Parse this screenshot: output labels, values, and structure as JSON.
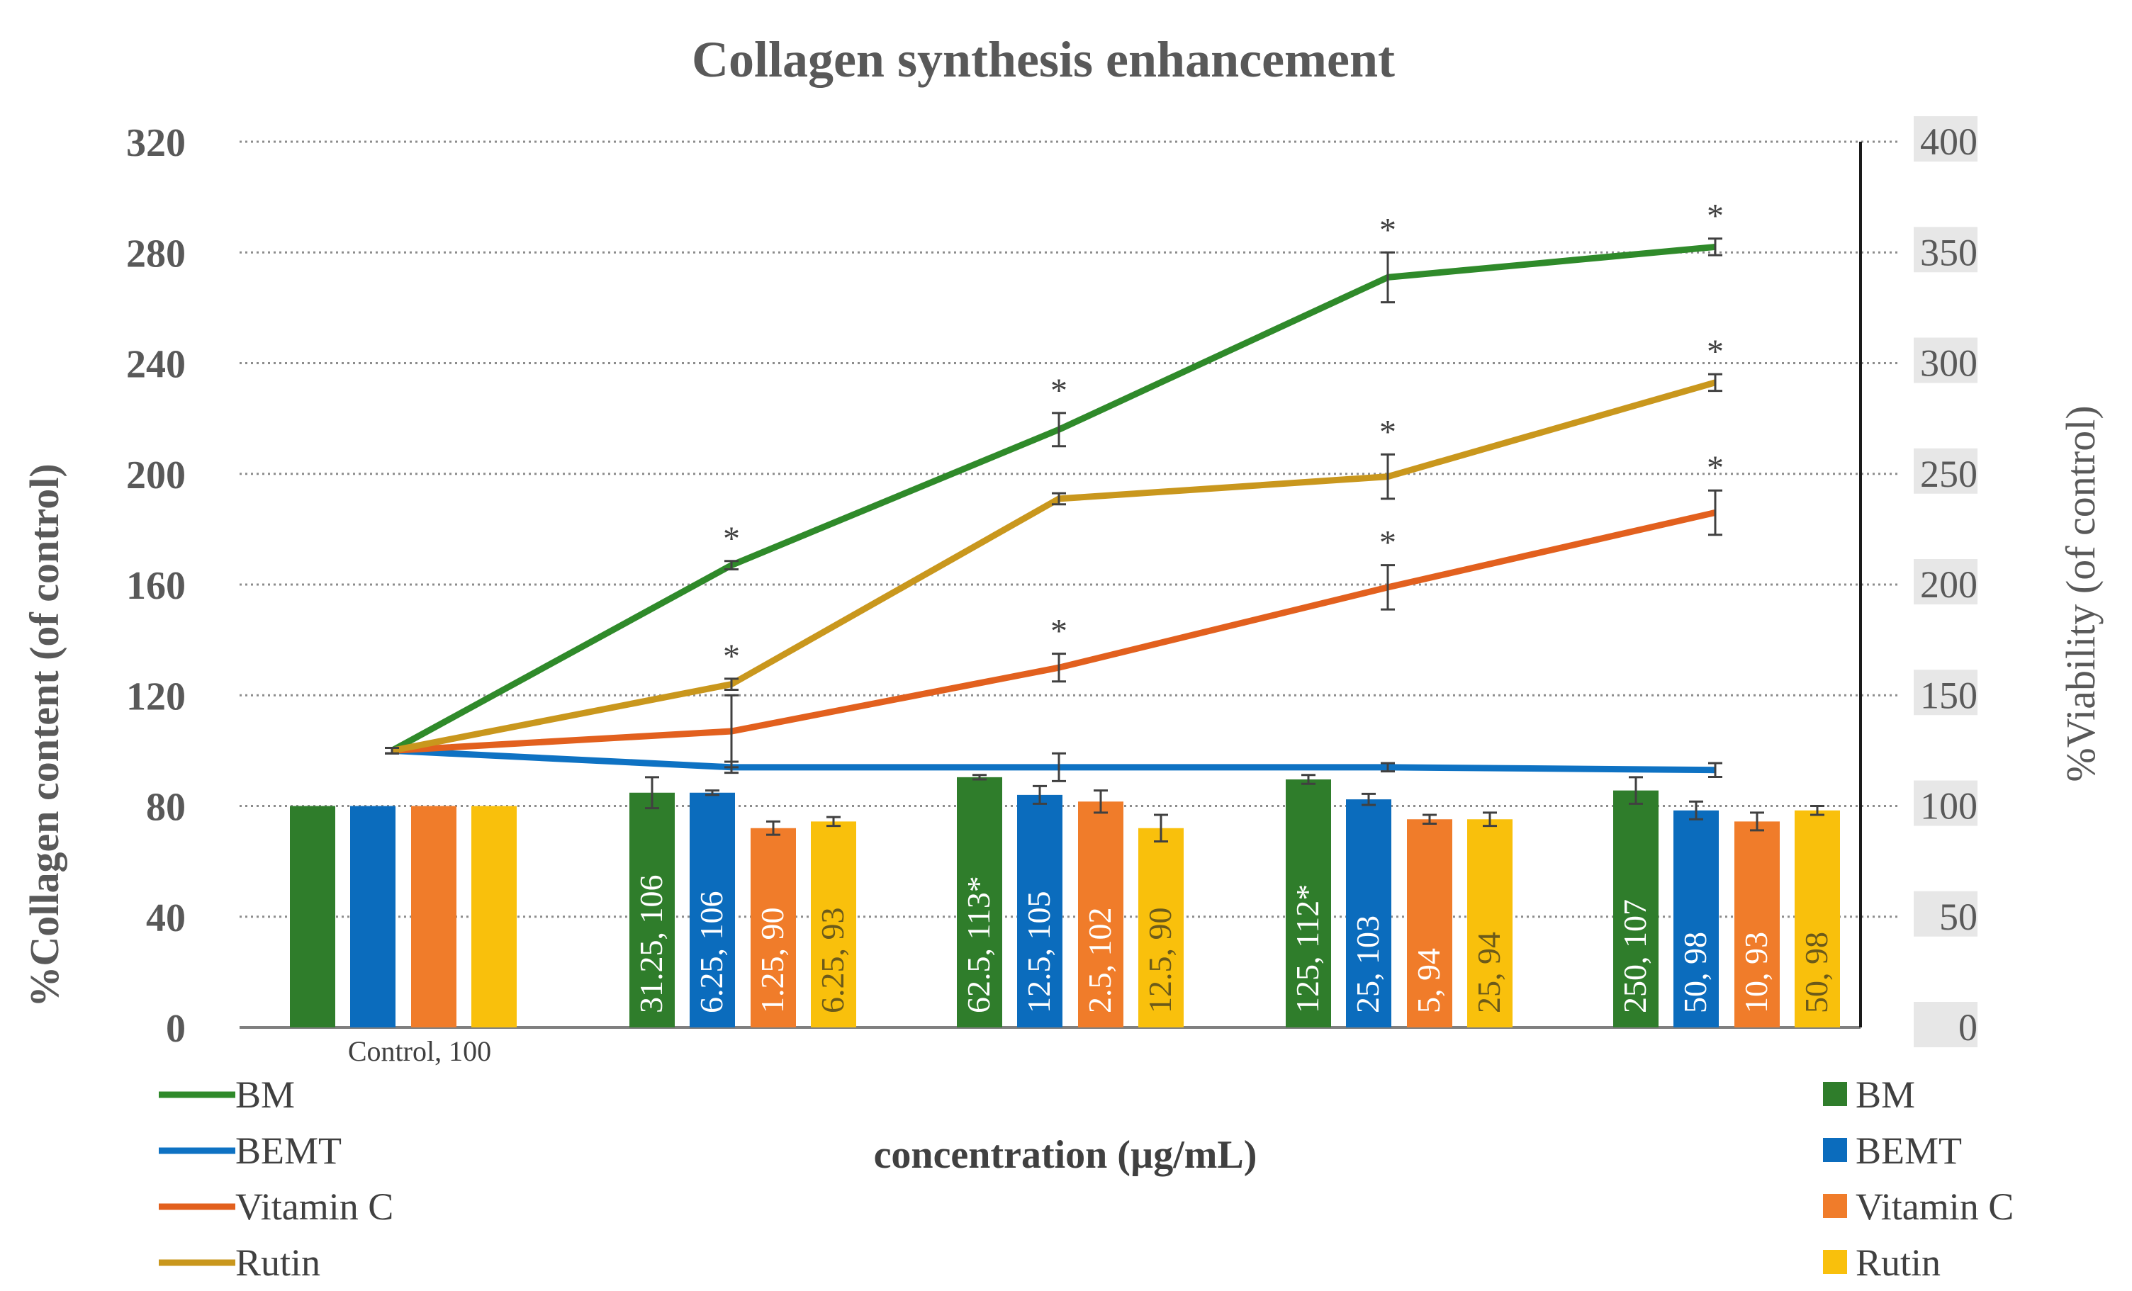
{
  "chart_data": {
    "type": "bar+line",
    "title": "Collagen synthesis enhancement",
    "xlabel": "concentration (µg/mL)",
    "ylabel_left": "%Collagen content (of control)",
    "ylabel_right": "%Viability (of control)",
    "ylim_left": [
      0,
      320
    ],
    "ylim_right": [
      0,
      400
    ],
    "yticks_left": [
      "0",
      "40",
      "80",
      "120",
      "160",
      "200",
      "240",
      "280",
      "320"
    ],
    "yticks_right": [
      "0",
      "50",
      "100",
      "150",
      "200",
      "250",
      "300",
      "350",
      "400"
    ],
    "grid": true,
    "groups": 5,
    "colors": {
      "BM": "#2f7d2b",
      "BEMT": "#0b6cbd",
      "VitaminC": "#f07c2a",
      "Rutin": "#f9c00c",
      "line_BM": "#2f8a2a",
      "line_BEMT": "#0e72c3",
      "line_VitaminC": "#e2601e",
      "line_Rutin": "#c9971d"
    },
    "line_series": [
      {
        "key": "BM",
        "values": [
          100,
          167,
          216,
          271,
          282
        ],
        "errors": [
          1,
          1.5,
          6,
          9,
          3
        ],
        "stars": [
          false,
          true,
          true,
          true,
          true
        ]
      },
      {
        "key": "BEMT",
        "values": [
          100,
          94,
          94,
          94,
          93
        ],
        "errors": [
          1,
          2,
          5,
          1.5,
          2.5
        ],
        "stars": [
          false,
          false,
          false,
          false,
          false
        ]
      },
      {
        "key": "VitaminC",
        "values": [
          100,
          107,
          130,
          159,
          186
        ],
        "errors": [
          1,
          13,
          5,
          8,
          8
        ],
        "stars": [
          false,
          false,
          true,
          true,
          true
        ]
      },
      {
        "key": "Rutin",
        "values": [
          100,
          124,
          191,
          199,
          233
        ],
        "errors": [
          1,
          2,
          2,
          8,
          3
        ],
        "stars": [
          false,
          true,
          false,
          true,
          true
        ]
      }
    ],
    "bar_series": [
      {
        "key": "BM",
        "values": [
          100,
          106,
          113,
          112,
          107
        ],
        "errors": [
          0,
          7,
          1,
          2,
          6
        ]
      },
      {
        "key": "BEMT",
        "values": [
          100,
          106,
          105,
          103,
          98
        ],
        "errors": [
          0,
          1,
          4,
          2.5,
          4
        ]
      },
      {
        "key": "VitaminC",
        "values": [
          100,
          90,
          102,
          94,
          93
        ],
        "errors": [
          0,
          3,
          5,
          2,
          4
        ]
      },
      {
        "key": "Rutin",
        "values": [
          100,
          93,
          90,
          94,
          98
        ],
        "errors": [
          0,
          2,
          6,
          3,
          2
        ]
      }
    ],
    "bar_labels": [
      [
        "",
        "",
        "",
        ""
      ],
      [
        "31.25, 106",
        "6.25, 106",
        "1.25, 90",
        "6.25, 93"
      ],
      [
        "62.5, 113*",
        "12.5, 105",
        "2.5, 102",
        "12.5, 90"
      ],
      [
        "125, 112*",
        "25, 103",
        "5, 94",
        "25, 94"
      ],
      [
        "250, 107",
        "50, 98",
        "10, 93",
        "50, 98"
      ]
    ],
    "control_label": "Control, 100",
    "star_text": "*",
    "legend_left": [
      {
        "key": "line_BM",
        "label": "BM"
      },
      {
        "key": "line_BEMT",
        "label": "BEMT"
      },
      {
        "key": "line_VitaminC",
        "label": "Vitamin C"
      },
      {
        "key": "line_Rutin",
        "label": "Rutin"
      }
    ],
    "legend_right": [
      {
        "key": "BM",
        "label": "BM"
      },
      {
        "key": "BEMT",
        "label": "BEMT"
      },
      {
        "key": "VitaminC",
        "label": "Vitamin C"
      },
      {
        "key": "Rutin",
        "label": "Rutin"
      }
    ]
  }
}
